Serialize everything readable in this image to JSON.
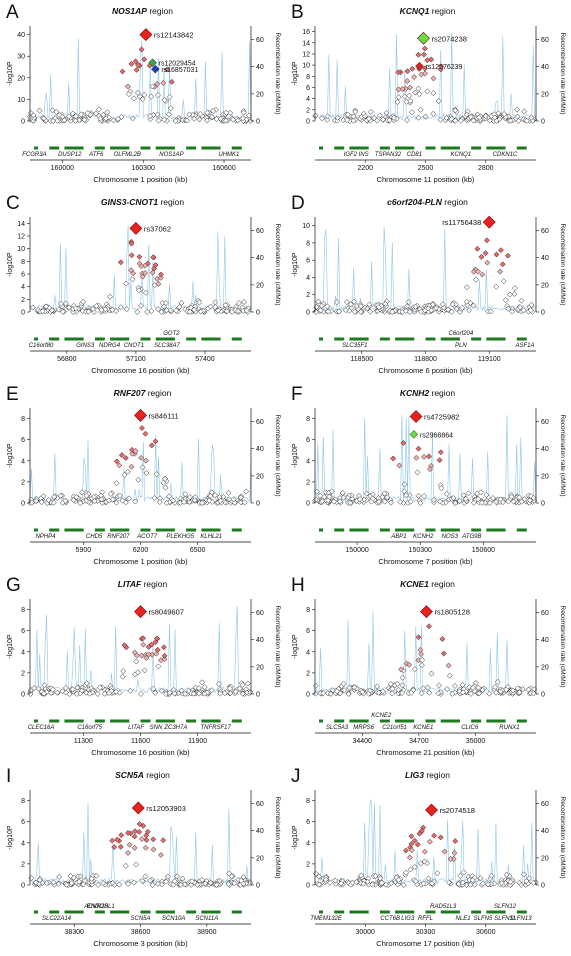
{
  "figure_labels": {
    "ylabel": "-log10P",
    "y2label": "Recombination rate (cM/Mb)",
    "region_word": "region"
  },
  "chart_data": [
    {
      "letter": "A",
      "type": "scatter",
      "gene": "NOS1AP",
      "xlabel": "Chromosome 1 position (kb)",
      "xlim": [
        159880,
        160700
      ],
      "xticks": [
        160000,
        160300,
        160600
      ],
      "ylim": [
        0,
        44
      ],
      "yticks": [
        0,
        10,
        20,
        30,
        40
      ],
      "y2ticks": [
        0,
        20,
        40,
        60
      ],
      "lead": {
        "label": "rs12143842",
        "x": 160310,
        "y": 40
      },
      "extra": [
        {
          "label": "rs12029454",
          "x": 160335,
          "y": 27,
          "color": "#2ea84a"
        },
        {
          "label": "rs16857031",
          "x": 160345,
          "y": 24,
          "color": "#1f3fbf"
        }
      ],
      "genes": [
        "FCGR3A",
        "DUSP12",
        "ATF6",
        "OLFML2B",
        "NOS1AP",
        "UHMK1"
      ]
    },
    {
      "letter": "B",
      "type": "scatter",
      "gene": "KCNQ1",
      "xlabel": "Chromosome 11 position (kb)",
      "xlim": [
        1950,
        3050
      ],
      "xticks": [
        2200,
        2500,
        2800
      ],
      "ylim": [
        0,
        17
      ],
      "yticks": [
        0,
        2,
        4,
        6,
        8,
        10,
        12,
        14,
        16
      ],
      "y2ticks": [
        0,
        20,
        40,
        60
      ],
      "lead": {
        "label": "rs2074238",
        "x": 2490,
        "y": 14.8,
        "color": "#66dd44"
      },
      "extra": [
        {
          "label": "rs12576239",
          "x": 2470,
          "y": 9.8,
          "color": "#dd2020"
        }
      ],
      "genes": [
        "IGF2",
        "INS",
        "TSPAN32",
        "CD81",
        "KCNQ1",
        "CDKN1C"
      ]
    },
    {
      "letter": "C",
      "type": "scatter",
      "gene": "GINS3-CNOT1",
      "xlabel": "Chromosome 16 position (kb)",
      "xlim": [
        56640,
        57600
      ],
      "xticks": [
        56800,
        57100,
        57400
      ],
      "ylim": [
        0,
        15
      ],
      "yticks": [
        0,
        2,
        4,
        6,
        8,
        10,
        12,
        14
      ],
      "y2ticks": [
        0,
        20,
        40,
        60
      ],
      "lead": {
        "label": "rs37062",
        "x": 57100,
        "y": 13.2
      },
      "genes": [
        "C16orf80",
        "GINS3",
        "NDRG4",
        "CNOT1",
        "SLC38A7",
        "GOT2"
      ]
    },
    {
      "letter": "D",
      "type": "scatter",
      "gene": "c6orf204-PLN",
      "xlabel": "Chromosome 6 position (kb)",
      "xlim": [
        118280,
        119320
      ],
      "xticks": [
        118500,
        118800,
        119100
      ],
      "ylim": [
        0,
        11
      ],
      "yticks": [
        0,
        2,
        4,
        6,
        8,
        10
      ],
      "y2ticks": [
        0,
        20,
        40,
        60
      ],
      "lead": {
        "label": "rs11756438",
        "x": 119100,
        "y": 10.4
      },
      "genes": [
        "SLC35F1",
        "C6orf204",
        "PLN",
        "ASF1A"
      ]
    },
    {
      "letter": "E",
      "type": "scatter",
      "gene": "RNF207",
      "xlabel": "Chromosome 1 position (kb)",
      "xlim": [
        5620,
        6780
      ],
      "xticks": [
        5900,
        6200,
        6500
      ],
      "ylim": [
        0,
        9
      ],
      "yticks": [
        0,
        2,
        4,
        6,
        8
      ],
      "y2ticks": [
        0,
        20,
        40,
        60
      ],
      "lead": {
        "label": "rs846111",
        "x": 6200,
        "y": 8.3
      },
      "genes": [
        "NPHP4",
        "CHD5",
        "RNF207",
        "ACOT7",
        "PLEKHG5",
        "KLHL21"
      ]
    },
    {
      "letter": "F",
      "type": "scatter",
      "gene": "KCNH2",
      "xlabel": "Chromosome 7 position (kb)",
      "xlim": [
        149800,
        150850
      ],
      "xticks": [
        150000,
        150300,
        150600
      ],
      "ylim": [
        0,
        9
      ],
      "yticks": [
        0,
        2,
        4,
        6,
        8
      ],
      "y2ticks": [
        0,
        20,
        40,
        60
      ],
      "lead": {
        "label": "rs4725982",
        "x": 150280,
        "y": 8.2
      },
      "extra": [
        {
          "label": "rs2968864",
          "x": 150270,
          "y": 6.5,
          "color": "#66dd44"
        }
      ],
      "genes": [
        "ABP1",
        "KCNH2",
        "NOS3",
        "ATG9B"
      ]
    },
    {
      "letter": "G",
      "type": "scatter",
      "gene": "LITAF",
      "xlabel": "Chromosome 16 position (kb)",
      "xlim": [
        11020,
        12180
      ],
      "xticks": [
        11300,
        11600,
        11900
      ],
      "ylim": [
        0,
        9
      ],
      "yticks": [
        0,
        2,
        4,
        6,
        8
      ],
      "y2ticks": [
        0,
        20,
        40,
        60
      ],
      "lead": {
        "label": "rs8049607",
        "x": 11600,
        "y": 7.8
      },
      "genes": [
        "CLEC16A",
        "C16orf75",
        "LITAF",
        "SNN",
        "ZC3H7A",
        "TNFRSF17"
      ]
    },
    {
      "letter": "H",
      "type": "scatter",
      "gene": "KCNE1",
      "xlabel": "Chromosome 21 position (kb)",
      "xlim": [
        34150,
        35320
      ],
      "xticks": [
        34400,
        34700,
        35000
      ],
      "ylim": [
        0,
        9
      ],
      "yticks": [
        0,
        2,
        4,
        6,
        8
      ],
      "y2ticks": [
        0,
        20,
        40,
        60
      ],
      "lead": {
        "label": "rs1805128",
        "x": 34740,
        "y": 7.8
      },
      "genes": [
        "SLC5A3",
        "MRPS6",
        "KCNE2",
        "C21orf51",
        "KCNE1",
        "CLIC6",
        "RUNX1"
      ]
    },
    {
      "letter": "I",
      "type": "scatter",
      "gene": "SCN5A",
      "xlabel": "Chromosome 3 position (kb)",
      "xlim": [
        38100,
        39100
      ],
      "xticks": [
        38300,
        38600,
        38900
      ],
      "ylim": [
        0,
        9
      ],
      "yticks": [
        0,
        2,
        4,
        6,
        8
      ],
      "y2ticks": [
        0,
        20,
        40,
        60
      ],
      "lead": {
        "label": "rs12053903",
        "x": 38590,
        "y": 7.3
      },
      "genes": [
        "SLC22A14",
        "ACVR2B",
        "ENDOSL1",
        "SCN5A",
        "SCN10A",
        "SCN11A"
      ]
    },
    {
      "letter": "J",
      "type": "scatter",
      "gene": "LIG3",
      "xlabel": "Chromosome 17 position (kb)",
      "xlim": [
        29750,
        30850
      ],
      "xticks": [
        30000,
        30300,
        30600
      ],
      "ylim": [
        0,
        9
      ],
      "yticks": [
        0,
        2,
        4,
        6,
        8
      ],
      "y2ticks": [
        0,
        20,
        40,
        60
      ],
      "lead": {
        "label": "rs2074518",
        "x": 30330,
        "y": 7.1
      },
      "genes": [
        "TMEM132E",
        "CCT6B",
        "LIG3",
        "RFFL",
        "RAD51L3",
        "NLE1",
        "SLFN5",
        "SLFN11",
        "SLFN12",
        "SLFN13"
      ]
    }
  ]
}
